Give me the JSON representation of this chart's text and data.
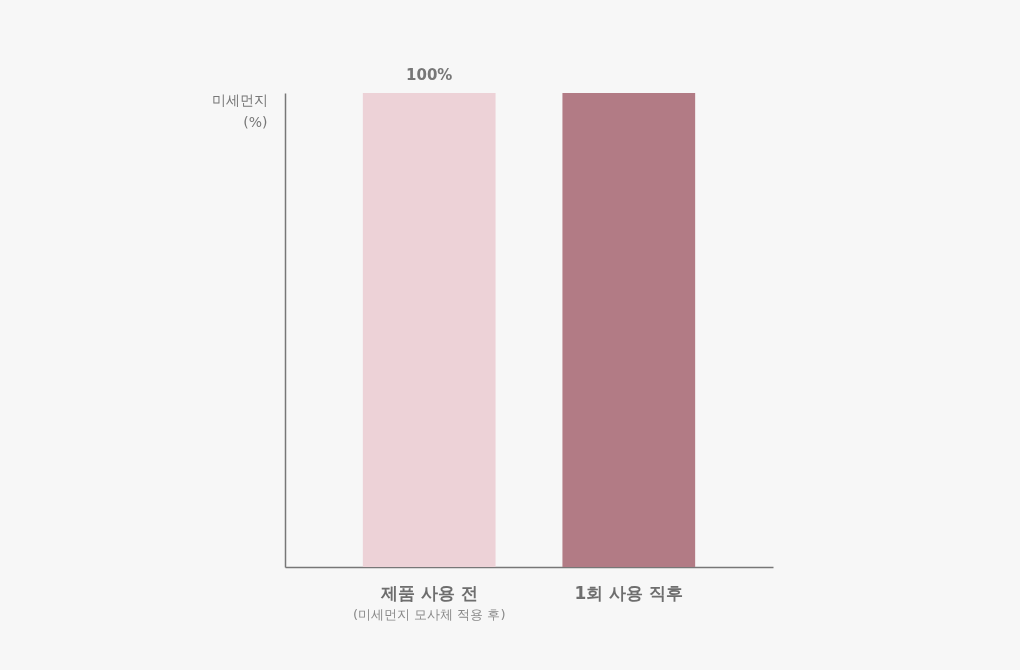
{
  "chart_data": {
    "type": "bar",
    "categories": [
      "제품 사용 전",
      "1회 사용 직후"
    ],
    "values": [
      100,
      100
    ],
    "colors": [
      "#edd2d7",
      "#b27b85"
    ],
    "value_labels": [
      "100%",
      null
    ],
    "ylim": [
      0,
      100
    ],
    "ylabel": "미세먼지 (%)",
    "annotations": [
      "(미세먼지 모사체 적용 후)"
    ]
  }
}
